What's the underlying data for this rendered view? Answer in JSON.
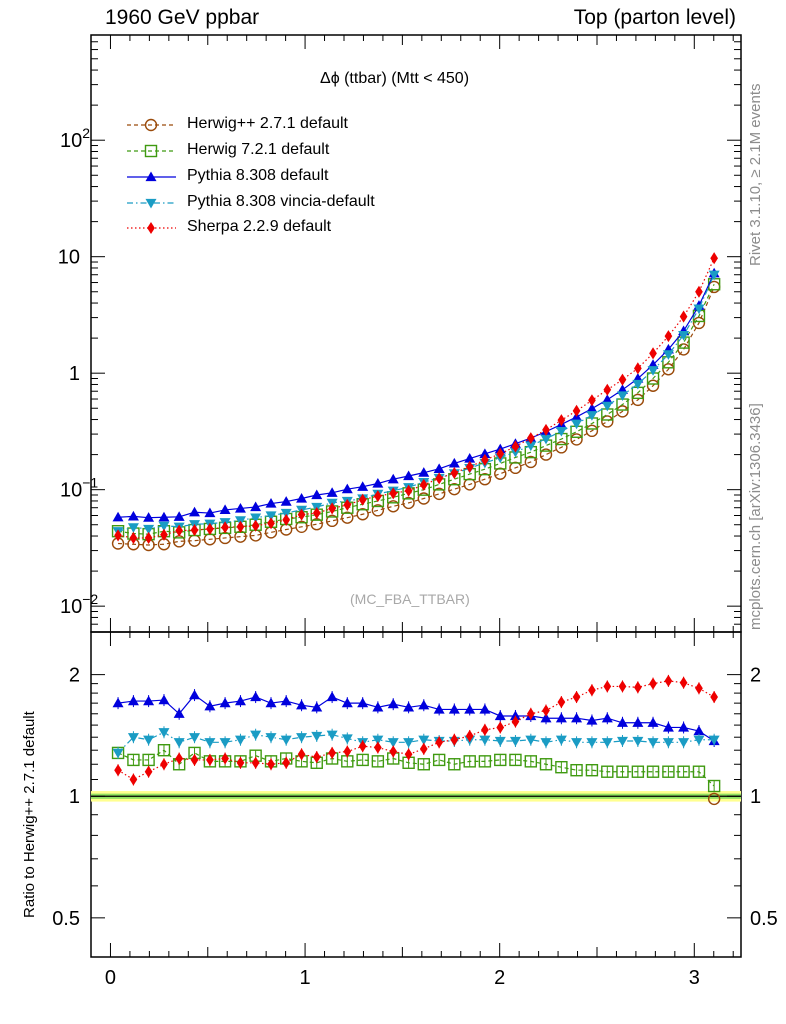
{
  "header": {
    "left": "1960 GeV ppbar",
    "right": "Top (parton level)"
  },
  "side_text": {
    "rivet": "Rivet 3.1.10, ≥ 2.1M events",
    "mcplots": "mcplots.cern.ch [arXiv:1306.3436]"
  },
  "plot_title": "Δϕ (ttbar) (Mtt < 450)",
  "analysis_tag": "(MC_FBA_TTBAR)",
  "ratio_ylabel": "Ratio to Herwig++ 2.7.1 default",
  "colors": {
    "herwigpp": "#9a4a0a",
    "herwig7": "#3f9a10",
    "pythia": "#0000dd",
    "vincia": "#1a9cc4",
    "sherpa": "#ee0000",
    "band_inner": "#90e060",
    "band_outer": "#ffff90"
  },
  "chart_data": [
    {
      "type": "line",
      "panel": "main",
      "ylog": true,
      "xlim": [
        -0.1,
        3.24
      ],
      "ylim": [
        0.006,
        800
      ],
      "x_ticks": [
        "0",
        "1",
        "2",
        "3"
      ],
      "y_ticks": [
        "10^-2",
        "10^-1",
        "1",
        "10",
        "10^2"
      ],
      "x": [
        0.039,
        0.118,
        0.196,
        0.275,
        0.353,
        0.432,
        0.511,
        0.589,
        0.668,
        0.746,
        0.825,
        0.903,
        0.982,
        1.06,
        1.139,
        1.217,
        1.296,
        1.374,
        1.453,
        1.532,
        1.61,
        1.689,
        1.767,
        1.846,
        1.924,
        2.003,
        2.081,
        2.16,
        2.238,
        2.317,
        2.395,
        2.474,
        2.553,
        2.631,
        2.71,
        2.788,
        2.867,
        2.945,
        3.024,
        3.102
      ],
      "series": [
        {
          "name": "Herwig++ 2.7.1 default",
          "marker": "circle-open",
          "style": "dashed",
          "color_key": "herwigpp",
          "values": [
            0.0345,
            0.034,
            0.0335,
            0.034,
            0.036,
            0.0365,
            0.0375,
            0.0385,
            0.0395,
            0.0405,
            0.043,
            0.0455,
            0.048,
            0.0505,
            0.054,
            0.0575,
            0.0615,
            0.0665,
            0.072,
            0.077,
            0.084,
            0.092,
            0.101,
            0.111,
            0.123,
            0.137,
            0.154,
            0.173,
            0.2,
            0.231,
            0.27,
            0.32,
            0.385,
            0.47,
            0.59,
            0.78,
            1.08,
            1.6,
            2.7,
            5.5
          ]
        },
        {
          "name": "Herwig 7.2.1 default",
          "marker": "square-open",
          "style": "dashed",
          "color_key": "herwig7",
          "values": [
            0.044,
            0.042,
            0.0415,
            0.044,
            0.043,
            0.045,
            0.046,
            0.047,
            0.048,
            0.05,
            0.053,
            0.056,
            0.058,
            0.061,
            0.065,
            0.07,
            0.075,
            0.08,
            0.086,
            0.093,
            0.1,
            0.111,
            0.123,
            0.136,
            0.15,
            0.168,
            0.189,
            0.21,
            0.239,
            0.272,
            0.314,
            0.37,
            0.442,
            0.538,
            0.678,
            0.9,
            1.24,
            1.83,
            3.1,
            5.8
          ]
        },
        {
          "name": "Pythia 8.308 default",
          "marker": "triangle-up",
          "style": "solid",
          "color_key": "pythia",
          "values": [
            0.058,
            0.059,
            0.0575,
            0.058,
            0.0585,
            0.064,
            0.063,
            0.067,
            0.069,
            0.071,
            0.076,
            0.079,
            0.084,
            0.09,
            0.094,
            0.101,
            0.106,
            0.113,
            0.123,
            0.131,
            0.14,
            0.151,
            0.168,
            0.185,
            0.203,
            0.223,
            0.248,
            0.277,
            0.315,
            0.363,
            0.421,
            0.496,
            0.592,
            0.72,
            0.9,
            1.18,
            1.6,
            2.3,
            3.8,
            7.2
          ]
        },
        {
          "name": "Pythia 8.308 vincia-default",
          "marker": "triangle-down",
          "style": "dashdot",
          "color_key": "vincia",
          "values": [
            0.044,
            0.0475,
            0.046,
            0.049,
            0.048,
            0.0505,
            0.051,
            0.0525,
            0.0545,
            0.0575,
            0.06,
            0.063,
            0.067,
            0.071,
            0.077,
            0.08,
            0.084,
            0.092,
            0.098,
            0.105,
            0.116,
            0.126,
            0.138,
            0.153,
            0.17,
            0.188,
            0.211,
            0.239,
            0.273,
            0.318,
            0.368,
            0.435,
            0.524,
            0.644,
            0.808,
            1.06,
            1.45,
            2.12,
            3.58,
            7.0
          ]
        },
        {
          "name": "Sherpa 2.2.9 default",
          "marker": "diamond",
          "style": "dotted",
          "color_key": "sherpa",
          "values": [
            0.0405,
            0.0385,
            0.0385,
            0.041,
            0.0445,
            0.045,
            0.046,
            0.0475,
            0.048,
            0.049,
            0.0515,
            0.055,
            0.061,
            0.063,
            0.069,
            0.074,
            0.082,
            0.088,
            0.093,
            0.098,
            0.11,
            0.125,
            0.139,
            0.157,
            0.18,
            0.203,
            0.235,
            0.277,
            0.326,
            0.395,
            0.475,
            0.585,
            0.72,
            0.88,
            1.1,
            1.48,
            2.08,
            3.06,
            5.0,
            9.7
          ]
        }
      ]
    },
    {
      "type": "line",
      "panel": "ratio",
      "ylabel": "Ratio to Herwig++ 2.7.1 default",
      "ylog": true,
      "ylim": [
        0.4,
        2.55
      ],
      "y_ticks": [
        "0.5",
        "1",
        "2"
      ],
      "x_ticks": [
        "0",
        "1",
        "2",
        "3"
      ],
      "reference_band": {
        "inner": [
          0.985,
          1.015
        ],
        "outer": [
          0.97,
          1.03
        ]
      },
      "series": [
        {
          "name": "Herwig 7.2.1 default",
          "values": [
            1.28,
            1.23,
            1.23,
            1.3,
            1.2,
            1.28,
            1.22,
            1.22,
            1.22,
            1.26,
            1.22,
            1.24,
            1.22,
            1.21,
            1.24,
            1.22,
            1.23,
            1.22,
            1.24,
            1.21,
            1.2,
            1.23,
            1.2,
            1.22,
            1.22,
            1.23,
            1.23,
            1.22,
            1.2,
            1.18,
            1.16,
            1.16,
            1.15,
            1.15,
            1.15,
            1.15,
            1.15,
            1.15,
            1.15,
            1.06
          ]
        },
        {
          "name": "Pythia 8.308 default",
          "values": [
            1.7,
            1.72,
            1.72,
            1.73,
            1.6,
            1.78,
            1.67,
            1.7,
            1.72,
            1.76,
            1.7,
            1.72,
            1.68,
            1.66,
            1.76,
            1.7,
            1.7,
            1.66,
            1.69,
            1.66,
            1.68,
            1.64,
            1.64,
            1.64,
            1.64,
            1.58,
            1.58,
            1.58,
            1.56,
            1.56,
            1.56,
            1.54,
            1.56,
            1.52,
            1.52,
            1.52,
            1.48,
            1.48,
            1.45,
            1.37
          ]
        },
        {
          "name": "Pythia 8.308 vincia-default",
          "values": [
            1.28,
            1.4,
            1.38,
            1.44,
            1.36,
            1.4,
            1.36,
            1.36,
            1.38,
            1.42,
            1.4,
            1.38,
            1.4,
            1.41,
            1.42,
            1.39,
            1.36,
            1.38,
            1.36,
            1.36,
            1.38,
            1.37,
            1.37,
            1.38,
            1.38,
            1.37,
            1.37,
            1.38,
            1.36,
            1.38,
            1.36,
            1.36,
            1.36,
            1.37,
            1.37,
            1.36,
            1.36,
            1.36,
            1.38,
            1.38
          ]
        },
        {
          "name": "Sherpa 2.2.9 default",
          "values": [
            1.16,
            1.1,
            1.15,
            1.2,
            1.24,
            1.23,
            1.23,
            1.24,
            1.21,
            1.21,
            1.2,
            1.21,
            1.27,
            1.25,
            1.28,
            1.29,
            1.33,
            1.32,
            1.29,
            1.27,
            1.31,
            1.36,
            1.38,
            1.41,
            1.46,
            1.48,
            1.53,
            1.6,
            1.63,
            1.71,
            1.76,
            1.83,
            1.87,
            1.87,
            1.86,
            1.9,
            1.93,
            1.91,
            1.85,
            1.76
          ]
        }
      ]
    }
  ]
}
